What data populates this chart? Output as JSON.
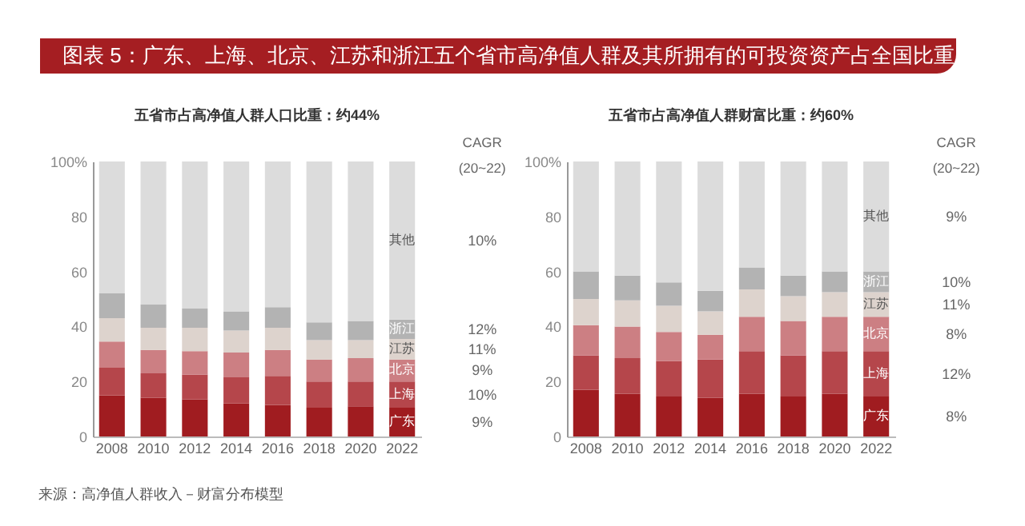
{
  "chart_data": [
    {
      "type": "other",
      "title": "图表 5：广东、上海、北京、江苏和浙江五个省市高净值人群及其所拥有的可投资资产占全国比重",
      "annotations": [
        "来源：高净值人群收入－财富分布模型"
      ]
    },
    {
      "type": "bar",
      "stacked": true,
      "title": "五省市占高净值人群人口比重：约44%",
      "categories": [
        "2008",
        "2010",
        "2012",
        "2014",
        "2016",
        "2018",
        "2020",
        "2022"
      ],
      "series": [
        {
          "name": "广东",
          "color": "#a01c20",
          "values": [
            15,
            14,
            13.5,
            12,
            11.5,
            10.5,
            11,
            10.5
          ]
        },
        {
          "name": "上海",
          "color": "#b5464b",
          "values": [
            10,
            9,
            9,
            9.5,
            10.5,
            9.5,
            9,
            9.5
          ]
        },
        {
          "name": "北京",
          "color": "#cc7f83",
          "values": [
            9.5,
            8.5,
            8.5,
            9,
            9.5,
            8,
            8.5,
            8
          ]
        },
        {
          "name": "江苏",
          "color": "#ddd3cd",
          "values": [
            8.5,
            8,
            8.5,
            8,
            8,
            7,
            6.5,
            7.5
          ]
        },
        {
          "name": "浙江",
          "color": "#b3b3b3",
          "values": [
            9,
            8.5,
            7,
            7,
            7.5,
            6.5,
            7,
            7
          ]
        },
        {
          "name": "其他",
          "color": "#dcdcdc",
          "values": [
            48,
            52,
            53.5,
            54.5,
            53,
            58.5,
            58,
            57.5
          ]
        }
      ],
      "ylim": [
        0,
        100
      ],
      "yticks": [
        0,
        20,
        40,
        60,
        80,
        {
          "value": 100,
          "label": "100%"
        }
      ],
      "grid": false,
      "legend": false,
      "annotations": [
        "CAGR",
        "(20~22)",
        "9%",
        "10%",
        "9%",
        "11%",
        "12%",
        "10%"
      ]
    },
    {
      "type": "bar",
      "stacked": true,
      "title": "五省市占高净值人群财富比重：约60%",
      "categories": [
        "2008",
        "2010",
        "2012",
        "2014",
        "2016",
        "2018",
        "2020",
        "2022"
      ],
      "series": [
        {
          "name": "广东",
          "color": "#a01c20",
          "values": [
            17,
            15.5,
            14.5,
            14,
            15.5,
            14.5,
            15.5,
            14.5
          ]
        },
        {
          "name": "上海",
          "color": "#b5464b",
          "values": [
            12.5,
            13,
            13,
            14,
            15.5,
            15,
            15.5,
            16.5
          ]
        },
        {
          "name": "北京",
          "color": "#cc7f83",
          "values": [
            11,
            11.5,
            10.5,
            9,
            12.5,
            12.5,
            12.5,
            12.5
          ]
        },
        {
          "name": "江苏",
          "color": "#ddd3cd",
          "values": [
            9.5,
            9.5,
            9.5,
            8.5,
            10,
            9,
            9,
            9
          ]
        },
        {
          "name": "浙江",
          "color": "#b3b3b3",
          "values": [
            10,
            9,
            8.5,
            7.5,
            8,
            7.5,
            7.5,
            7.5
          ]
        },
        {
          "name": "其他",
          "color": "#dcdcdc",
          "values": [
            40,
            41.5,
            44,
            47,
            38.5,
            41.5,
            40,
            40
          ]
        }
      ],
      "ylim": [
        0,
        100
      ],
      "yticks": [
        0,
        20,
        40,
        60,
        80,
        {
          "value": 100,
          "label": "100%"
        }
      ],
      "grid": false,
      "legend": false,
      "annotations": [
        "CAGR",
        "(20~22)",
        "8%",
        "12%",
        "8%",
        "11%",
        "10%",
        "9%"
      ]
    }
  ]
}
